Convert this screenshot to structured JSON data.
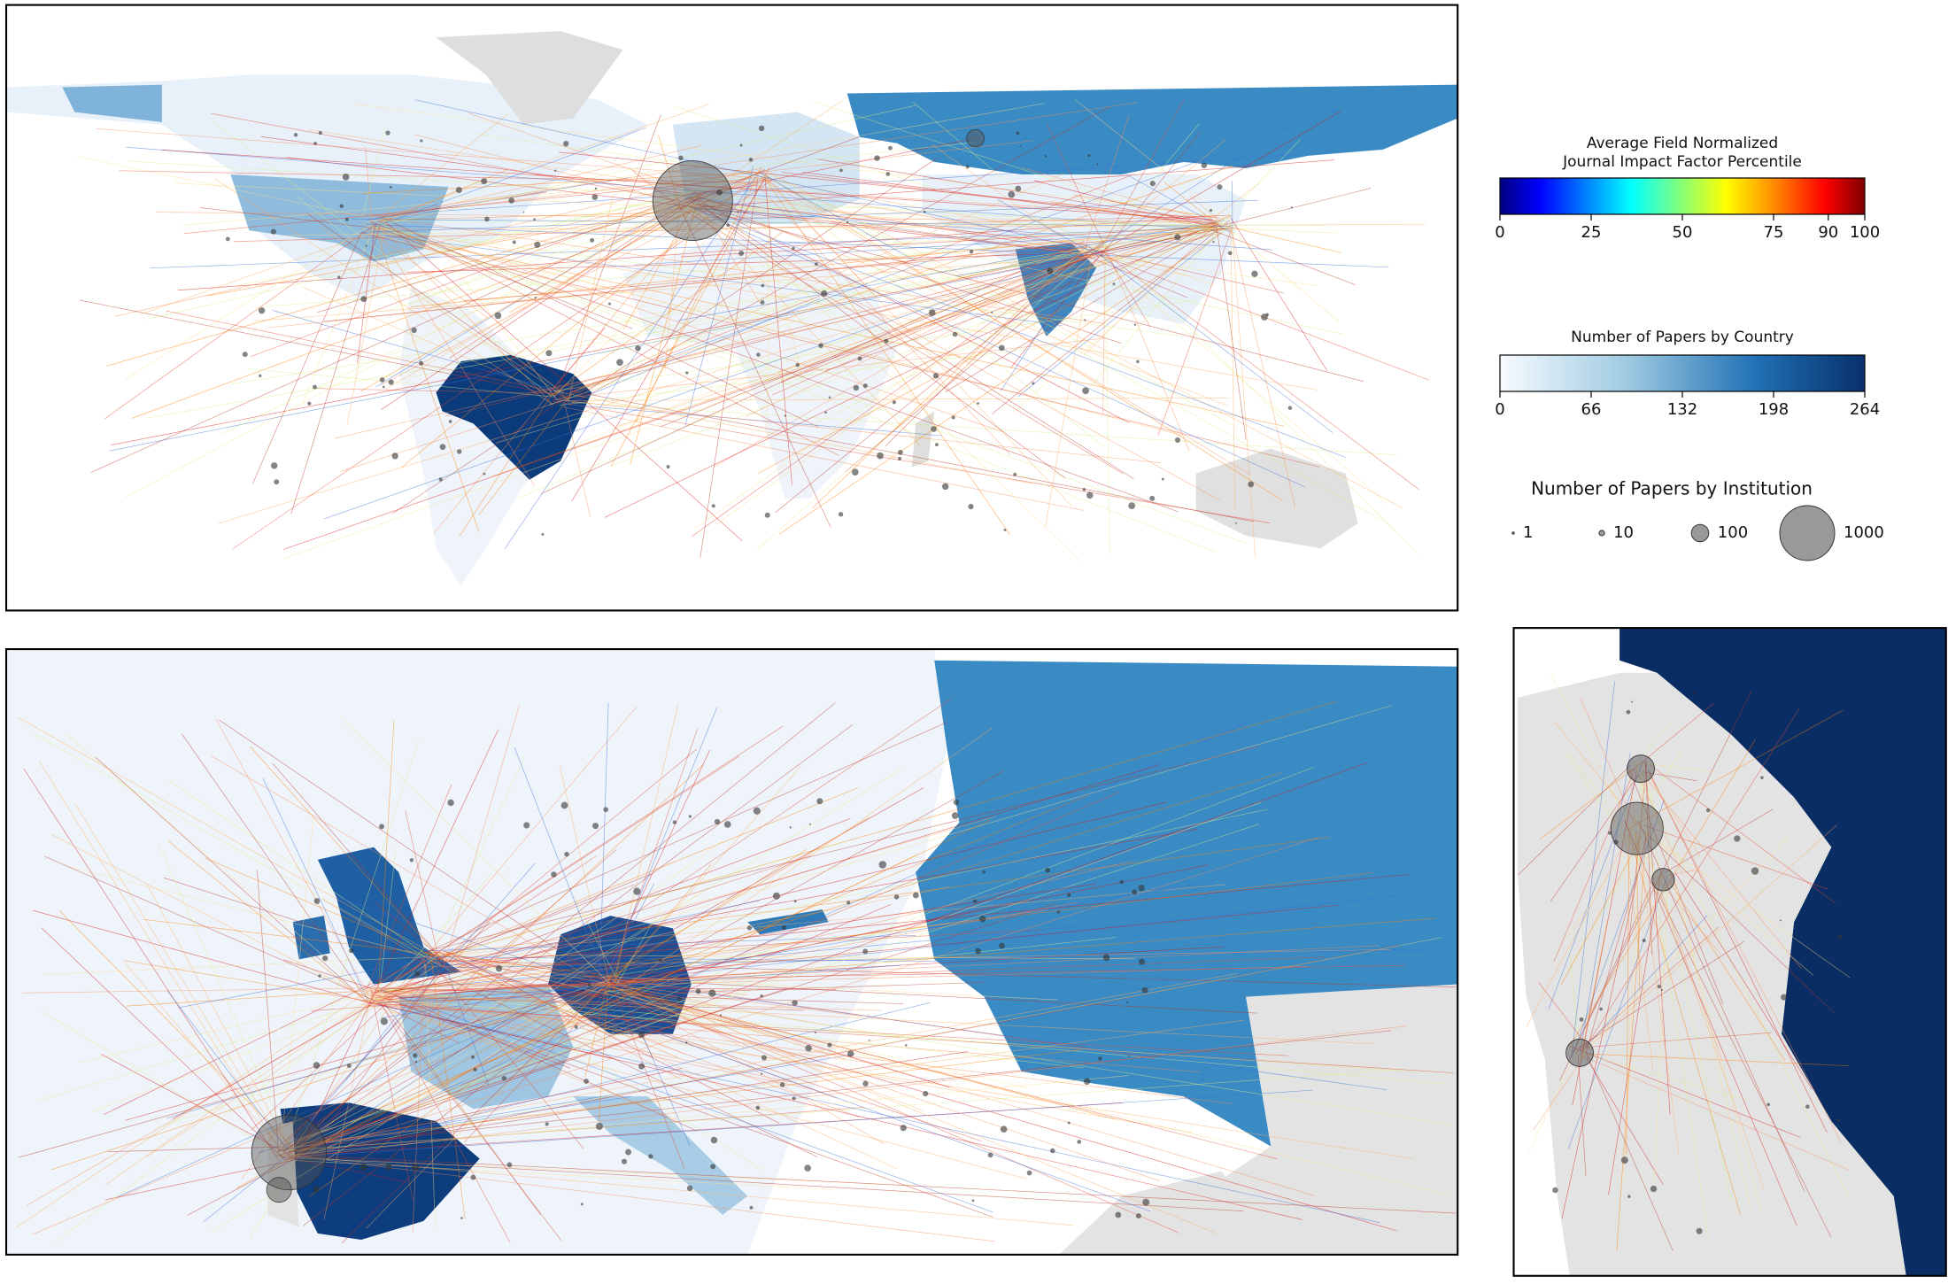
{
  "impact_colorbar": {
    "title": "Average Field Normalized",
    "title_line2": "Journal Impact Factor Percentile",
    "range": [
      0,
      100
    ],
    "ticks": [
      0,
      25,
      50,
      75,
      90,
      100
    ]
  },
  "country_colorbar": {
    "title": "Number of Papers by Country",
    "range": [
      0,
      264
    ],
    "ticks": [
      0,
      66,
      132,
      198,
      264
    ]
  },
  "institution_sizes": {
    "title": "Number of Papers by Institution",
    "sizes": [
      1,
      10,
      100,
      1000
    ]
  }
}
